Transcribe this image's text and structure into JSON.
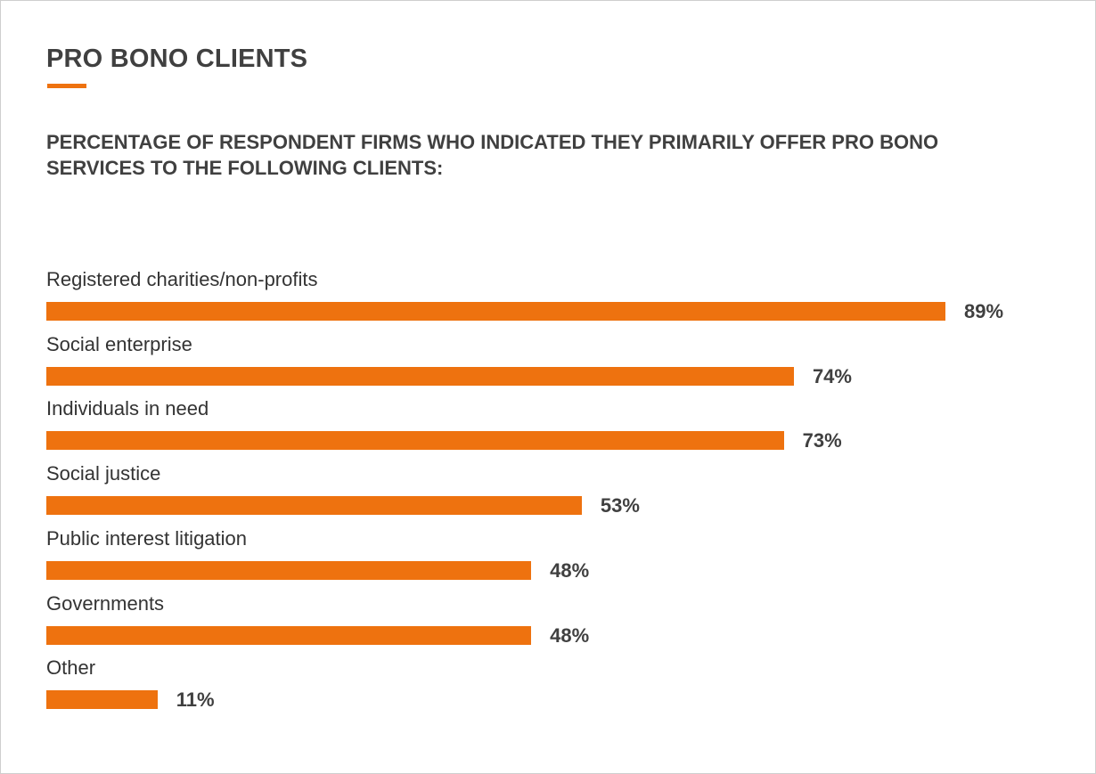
{
  "chart_data": {
    "type": "bar",
    "orientation": "horizontal",
    "title": "PRO BONO CLIENTS",
    "subtitle": "PERCENTAGE OF RESPONDENT FIRMS WHO INDICATED THEY PRIMARILY OFFER PRO BONO SERVICES TO THE FOLLOWING CLIENTS:",
    "categories": [
      "Registered charities/non-profits",
      "Social enterprise",
      "Individuals in need",
      "Social justice",
      "Public interest litigation",
      "Governments",
      "Other"
    ],
    "values": [
      89,
      74,
      73,
      53,
      48,
      48,
      11
    ],
    "value_labels": [
      "89%",
      "74%",
      "73%",
      "53%",
      "48%",
      "48%",
      "11%"
    ],
    "unit": "%",
    "xlim": [
      0,
      100
    ],
    "grid": false,
    "legend": "none",
    "bar_color": "#ee720f",
    "accent_color": "#ee720f",
    "text_color": "#404040"
  }
}
